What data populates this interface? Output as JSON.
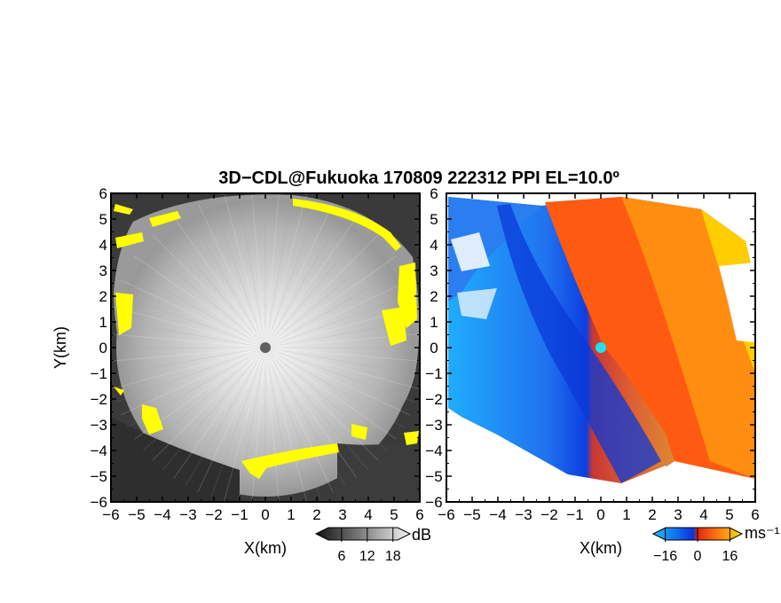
{
  "chart_data": [
    {
      "type": "heatmap",
      "title": "3D−CDL@Fukuoka 170809 222312 PPI EL=10.0º",
      "panel": "left",
      "xlabel": "X(km)",
      "ylabel": "Y(km)",
      "xlim": [
        -6,
        6
      ],
      "ylim": [
        -6,
        6
      ],
      "x_ticks": [
        "−6",
        "−5",
        "−4",
        "−3",
        "−2",
        "−1",
        "0",
        "1",
        "2",
        "3",
        "4",
        "5",
        "6"
      ],
      "y_ticks": [
        "6",
        "5",
        "4",
        "3",
        "2",
        "1",
        "0",
        "−1",
        "−2",
        "−3",
        "−4",
        "−5",
        "−6"
      ],
      "grid": false,
      "colormap": "grayscale",
      "highlight_color": "#ffff00",
      "radar_location": [
        0,
        0
      ],
      "colorbar": {
        "unit": "dB",
        "tick_labels": [
          "6",
          "12",
          "18"
        ],
        "ticks": [
          6,
          12,
          18
        ],
        "range": [
          0,
          22
        ]
      }
    },
    {
      "type": "heatmap",
      "panel": "right",
      "xlabel": "X(km)",
      "xlim": [
        -6,
        6
      ],
      "ylim": [
        -6,
        6
      ],
      "x_ticks": [
        "−6",
        "−5",
        "−4",
        "−3",
        "−2",
        "−1",
        "0",
        "1",
        "2",
        "3",
        "4",
        "5",
        "6"
      ],
      "y_ticks": [
        "6",
        "5",
        "4",
        "3",
        "2",
        "1",
        "0",
        "−1",
        "−2",
        "−3",
        "−4",
        "−5",
        "−6"
      ],
      "grid": false,
      "colormap": "blue-red-yellow",
      "colors": {
        "negative": "#1e88f0",
        "near_zero_neg": "#0a3ce0",
        "near_zero_pos": "#e02810",
        "positive": "#ffd400"
      },
      "radar_location": [
        0,
        0
      ],
      "colorbar": {
        "unit": "ms⁻¹",
        "tick_labels": [
          "−16",
          "0",
          "16"
        ],
        "ticks": [
          -16,
          0,
          16
        ],
        "range": [
          -22,
          22
        ]
      }
    }
  ]
}
